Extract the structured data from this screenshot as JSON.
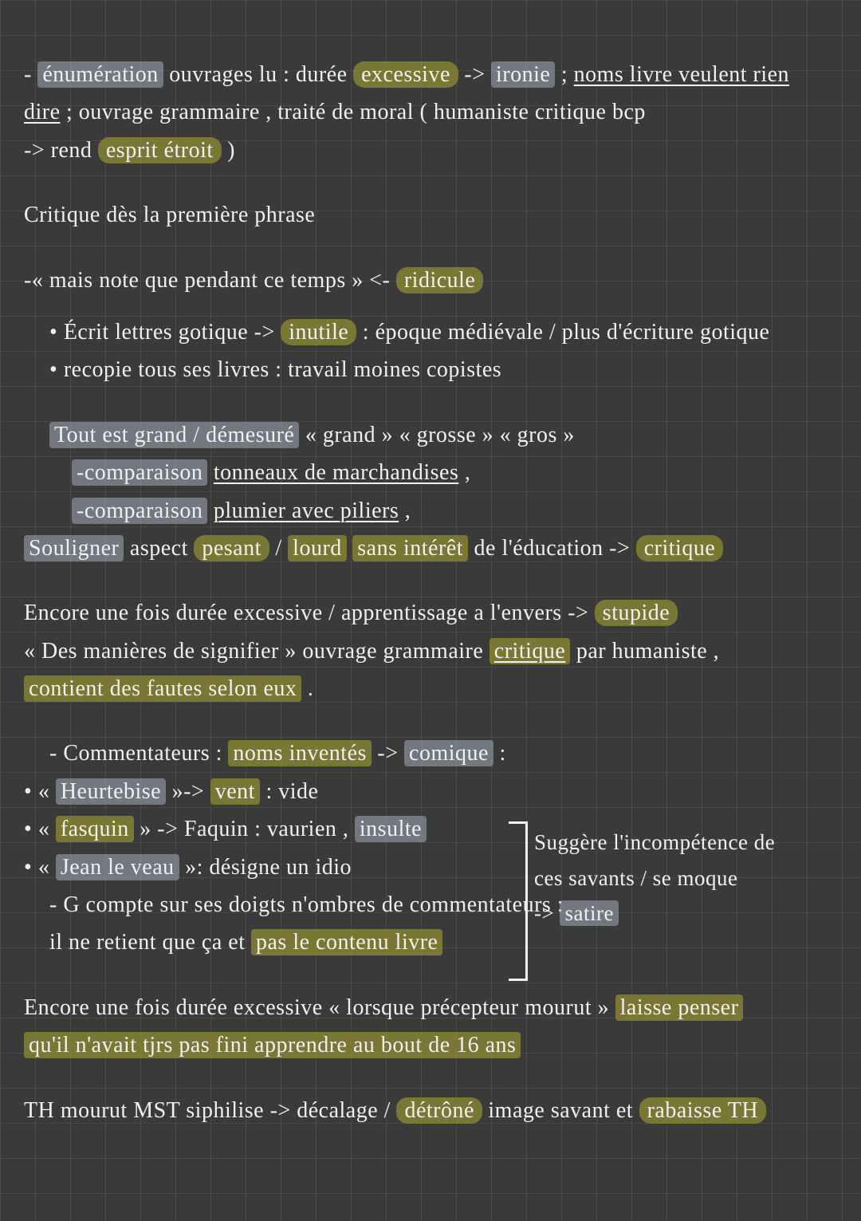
{
  "colors": {
    "bg": "#3a3a3a",
    "grid": "rgba(255,255,255,0.08)",
    "text": "#f0f0f0",
    "hl_grey": "rgba(160,170,185,0.55)",
    "hl_olive": "rgba(150,145,50,0.7)"
  },
  "p1": {
    "enum": "énumération",
    "t1a": " ouvrages lu : durée ",
    "excessive": "excessive",
    "t1b": " -> ",
    "ironie": "ironie",
    "t1c": " ; ",
    "underline1": "noms livre veulent rien",
    "dire": "dire",
    "t2": " ; ouvrage grammaire , traité de moral ( humaniste critique bcp",
    "t3a": "-> rend ",
    "esprit": "esprit étroit",
    "t3b": ")"
  },
  "p2": "Critique dès la première phrase",
  "p3": {
    "t1": "-«   mais note que pendant ce temps » <- ",
    "ridicule": "ridicule",
    "t2a": "Écrit lettres gotique -> ",
    "inutile": "inutile",
    "t2b": " : époque médiévale / plus d'écriture gotique",
    "t3": "recopie tous ses livres : travail moines copistes"
  },
  "p4": {
    "tout": "Tout est grand / démesuré",
    "t1b": " « grand » « grosse » « gros »",
    "comp1a": "-comparaison",
    "comp1u": "tonneaux de marchandises",
    "comp2a": "-comparaison",
    "comp2u": "plumier avec piliers",
    "souligner": "Souligner",
    "t3a": " aspect ",
    "pesant": "pesant",
    "t3b": " / ",
    "lourd": "lourd",
    "sans": "sans intérêt",
    "t3c": " de l'éducation -> ",
    "critique": "critique"
  },
  "p5": {
    "t1a": "Encore une fois durée excessive / apprentissage a l'envers -> ",
    "stupide": "stupide",
    "t2a": "« Des manières de signifier » ouvrage grammaire ",
    "critique": "critique",
    "t2b": " par humaniste ,",
    "fautes": "contient des fautes selon eux",
    "dot": " ."
  },
  "p6": {
    "t1a": "- Commentateurs : ",
    "noms": "noms inventés",
    "t1b": " -> ",
    "comique": "comique",
    "t1c": " :",
    "t2a": "« ",
    "heurt": "Heurtebise",
    "t2b": " »-> ",
    "vent": "vent",
    "t2c": " : vide",
    "t3a": "« ",
    "fasquin": "fasquin",
    "t3b": " » -> Faquin : vaurien , ",
    "insulte": "insulte",
    "t4a": "« ",
    "jean": "Jean le veau",
    "t4b": " »: désigne un idio",
    "t5": "- G compte sur ses doigts n'ombres de commentateurs :",
    "t6a": "il ne retient que ça et ",
    "pas": "pas le contenu livre"
  },
  "side": {
    "t1": "Suggère l'incompétence de",
    "t2": "ces savants / se moque",
    "t3a": "->",
    "satire": "satire"
  },
  "p7": {
    "t1a": "Encore une fois durée excessive « lorsque précepteur mourut » ",
    "laisse": "laisse penser",
    "t2": "qu'il n'avait tjrs pas fini apprendre au bout de 16 ans"
  },
  "p8": {
    "t1a": "TH mourut MST siphilise -> décalage / ",
    "detrone": "détrôné",
    "t1b": " image savant et ",
    "rabaisse": "rabaisse TH"
  }
}
